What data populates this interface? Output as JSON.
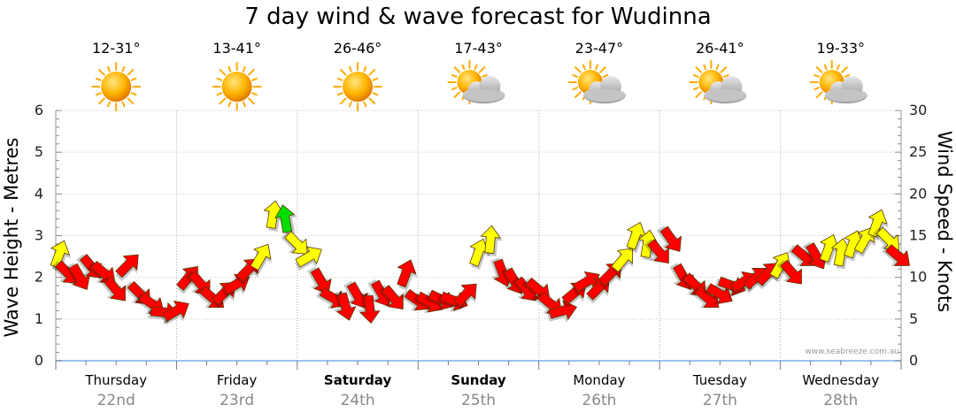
{
  "title": "7 day wind & wave forecast for Wudinna",
  "watermark": "www.seabreeze.com.au",
  "colors": {
    "calm": "#00dd00",
    "moderate": "#ffff00",
    "strong": "#ff0000",
    "sun": "#ffaa00",
    "cloud": "#b8b8b8",
    "wave_line": "#9cc3ef"
  },
  "days": [
    {
      "name": "Thursday",
      "date": "22nd",
      "bold": false,
      "temp": "12-31°",
      "weather_icon": "sun-icon"
    },
    {
      "name": "Friday",
      "date": "23rd",
      "bold": false,
      "temp": "13-41°",
      "weather_icon": "sun-icon"
    },
    {
      "name": "Saturday",
      "date": "24th",
      "bold": true,
      "temp": "26-46°",
      "weather_icon": "sun-icon"
    },
    {
      "name": "Sunday",
      "date": "25th",
      "bold": true,
      "temp": "17-43°",
      "weather_icon": "partly-cloudy-icon"
    },
    {
      "name": "Monday",
      "date": "26th",
      "bold": false,
      "temp": "23-47°",
      "weather_icon": "partly-cloudy-icon"
    },
    {
      "name": "Tuesday",
      "date": "27th",
      "bold": false,
      "temp": "26-41°",
      "weather_icon": "partly-cloudy-icon"
    },
    {
      "name": "Wednesday",
      "date": "28th",
      "bold": false,
      "temp": "19-33°",
      "weather_icon": "partly-cloudy-icon"
    }
  ],
  "chart_data": {
    "type": "line",
    "title": "7 day wind & wave forecast for Wudinna",
    "ylabel": "Wave Height - Metres",
    "y2label": "Wind Speed - Knots",
    "ylim": [
      0,
      6
    ],
    "y2lim": [
      0,
      30
    ],
    "yticks": [
      0,
      1,
      2,
      3,
      4,
      5,
      6
    ],
    "y2ticks": [
      0,
      5,
      10,
      15,
      20,
      25,
      30
    ],
    "grid": true,
    "x_unit": "day index (0 = start of Thursday 22nd)",
    "series": [
      {
        "x": [
          0.0,
          0.1,
          0.2,
          0.3,
          0.4,
          0.5,
          0.6,
          0.7,
          0.8,
          0.9,
          1.0,
          1.1,
          1.2,
          1.3,
          1.4,
          1.5,
          1.6,
          1.7,
          1.8,
          1.9,
          2.0,
          2.1,
          2.2,
          2.3,
          2.4,
          2.5,
          2.6,
          2.7,
          2.8,
          2.9,
          3.0,
          3.1,
          3.2,
          3.3,
          3.4,
          3.5,
          3.6,
          3.7,
          3.8,
          3.9,
          4.0,
          4.1,
          4.2,
          4.3,
          4.4,
          4.5,
          4.6,
          4.7,
          4.8,
          4.9,
          5.0,
          5.1,
          5.2,
          5.3,
          5.4,
          5.5,
          5.6,
          5.7,
          5.8,
          5.9,
          6.0,
          6.1,
          6.2,
          6.3,
          6.4,
          6.5,
          6.6,
          6.7,
          6.8,
          6.9,
          7.0
        ],
        "wind_knots": [
          12.8,
          10.5,
          10.0,
          11.2,
          10.5,
          8.5,
          11.5,
          8.0,
          6.8,
          5.8,
          6.0,
          10.0,
          9.2,
          7.5,
          8.2,
          9.2,
          11.0,
          12.5,
          17.5,
          17.0,
          14.0,
          12.5,
          9.5,
          7.5,
          6.5,
          7.8,
          6.2,
          8.0,
          7.5,
          10.5,
          7.2,
          7.0,
          7.3,
          7.2,
          8.0,
          13.0,
          14.5,
          10.5,
          9.5,
          8.5,
          8.5,
          6.8,
          6.0,
          8.2,
          9.5,
          8.8,
          10.5,
          12.2,
          15.0,
          14.0,
          13.0,
          14.5,
          10.0,
          9.0,
          7.5,
          8.0,
          9.0,
          9.5,
          10.0,
          10.5,
          11.5,
          10.5,
          12.5,
          12.5,
          13.5,
          13.0,
          14.0,
          14.5,
          16.5,
          14.5,
          12.5
        ]
      }
    ],
    "wind_arrows": [
      {
        "x": 0.03,
        "knots": 12.8,
        "dir": 20,
        "band": "moderate"
      },
      {
        "x": 0.1,
        "knots": 10.5,
        "dir": 135,
        "band": "strong"
      },
      {
        "x": 0.2,
        "knots": 10.0,
        "dir": 150,
        "band": "strong"
      },
      {
        "x": 0.3,
        "knots": 11.2,
        "dir": 140,
        "band": "strong"
      },
      {
        "x": 0.4,
        "knots": 10.5,
        "dir": 130,
        "band": "strong"
      },
      {
        "x": 0.5,
        "knots": 8.5,
        "dir": 140,
        "band": "strong"
      },
      {
        "x": 0.6,
        "knots": 11.5,
        "dir": 45,
        "band": "strong"
      },
      {
        "x": 0.7,
        "knots": 8.0,
        "dir": 135,
        "band": "strong"
      },
      {
        "x": 0.8,
        "knots": 6.8,
        "dir": 125,
        "band": "strong"
      },
      {
        "x": 0.9,
        "knots": 5.8,
        "dir": 95,
        "band": "strong"
      },
      {
        "x": 1.0,
        "knots": 6.0,
        "dir": 60,
        "band": "strong"
      },
      {
        "x": 1.1,
        "knots": 10.0,
        "dir": 40,
        "band": "strong"
      },
      {
        "x": 1.2,
        "knots": 9.2,
        "dir": 140,
        "band": "strong"
      },
      {
        "x": 1.3,
        "knots": 7.5,
        "dir": 130,
        "band": "strong"
      },
      {
        "x": 1.4,
        "knots": 8.2,
        "dir": 45,
        "band": "strong"
      },
      {
        "x": 1.5,
        "knots": 9.2,
        "dir": 60,
        "band": "strong"
      },
      {
        "x": 1.6,
        "knots": 11.0,
        "dir": 45,
        "band": "strong"
      },
      {
        "x": 1.7,
        "knots": 12.5,
        "dir": 30,
        "band": "moderate"
      },
      {
        "x": 1.8,
        "knots": 17.5,
        "dir": 10,
        "band": "moderate"
      },
      {
        "x": 1.9,
        "knots": 17.0,
        "dir": 350,
        "band": "calm"
      },
      {
        "x": 2.0,
        "knots": 14.0,
        "dir": 135,
        "band": "moderate"
      },
      {
        "x": 2.1,
        "knots": 12.5,
        "dir": 60,
        "band": "moderate"
      },
      {
        "x": 2.2,
        "knots": 9.5,
        "dir": 150,
        "band": "strong"
      },
      {
        "x": 2.3,
        "knots": 7.5,
        "dir": 120,
        "band": "strong"
      },
      {
        "x": 2.4,
        "knots": 6.5,
        "dir": 165,
        "band": "strong"
      },
      {
        "x": 2.5,
        "knots": 7.8,
        "dir": 150,
        "band": "strong"
      },
      {
        "x": 2.6,
        "knots": 6.2,
        "dir": 175,
        "band": "strong"
      },
      {
        "x": 2.7,
        "knots": 8.0,
        "dir": 150,
        "band": "strong"
      },
      {
        "x": 2.8,
        "knots": 7.5,
        "dir": 140,
        "band": "strong"
      },
      {
        "x": 2.9,
        "knots": 10.5,
        "dir": 20,
        "band": "strong"
      },
      {
        "x": 3.0,
        "knots": 7.2,
        "dir": 125,
        "band": "strong"
      },
      {
        "x": 3.1,
        "knots": 7.0,
        "dir": 120,
        "band": "strong"
      },
      {
        "x": 3.2,
        "knots": 7.3,
        "dir": 115,
        "band": "strong"
      },
      {
        "x": 3.3,
        "knots": 7.2,
        "dir": 110,
        "band": "strong"
      },
      {
        "x": 3.4,
        "knots": 8.0,
        "dir": 45,
        "band": "strong"
      },
      {
        "x": 3.5,
        "knots": 13.0,
        "dir": 20,
        "band": "moderate"
      },
      {
        "x": 3.6,
        "knots": 14.5,
        "dir": 5,
        "band": "moderate"
      },
      {
        "x": 3.7,
        "knots": 10.5,
        "dir": 160,
        "band": "strong"
      },
      {
        "x": 3.8,
        "knots": 9.5,
        "dir": 150,
        "band": "strong"
      },
      {
        "x": 3.9,
        "knots": 8.5,
        "dir": 140,
        "band": "strong"
      },
      {
        "x": 4.0,
        "knots": 8.5,
        "dir": 130,
        "band": "strong"
      },
      {
        "x": 4.1,
        "knots": 6.8,
        "dir": 130,
        "band": "strong"
      },
      {
        "x": 4.2,
        "knots": 6.0,
        "dir": 75,
        "band": "strong"
      },
      {
        "x": 4.3,
        "knots": 8.2,
        "dir": 50,
        "band": "strong"
      },
      {
        "x": 4.4,
        "knots": 9.5,
        "dir": 60,
        "band": "strong"
      },
      {
        "x": 4.5,
        "knots": 8.8,
        "dir": 45,
        "band": "strong"
      },
      {
        "x": 4.6,
        "knots": 10.5,
        "dir": 45,
        "band": "strong"
      },
      {
        "x": 4.7,
        "knots": 12.2,
        "dir": 40,
        "band": "moderate"
      },
      {
        "x": 4.8,
        "knots": 15.0,
        "dir": 20,
        "band": "moderate"
      },
      {
        "x": 4.9,
        "knots": 14.0,
        "dir": 10,
        "band": "moderate"
      },
      {
        "x": 5.0,
        "knots": 13.0,
        "dir": 140,
        "band": "strong"
      },
      {
        "x": 5.1,
        "knots": 14.5,
        "dir": 145,
        "band": "strong"
      },
      {
        "x": 5.2,
        "knots": 10.0,
        "dir": 150,
        "band": "strong"
      },
      {
        "x": 5.3,
        "knots": 9.0,
        "dir": 135,
        "band": "strong"
      },
      {
        "x": 5.4,
        "knots": 7.5,
        "dir": 130,
        "band": "strong"
      },
      {
        "x": 5.5,
        "knots": 8.0,
        "dir": 120,
        "band": "strong"
      },
      {
        "x": 5.6,
        "knots": 9.0,
        "dir": 110,
        "band": "strong"
      },
      {
        "x": 5.7,
        "knots": 9.5,
        "dir": 60,
        "band": "strong"
      },
      {
        "x": 5.8,
        "knots": 10.0,
        "dir": 50,
        "band": "strong"
      },
      {
        "x": 5.9,
        "knots": 10.5,
        "dir": 45,
        "band": "strong"
      },
      {
        "x": 6.0,
        "knots": 11.5,
        "dir": 30,
        "band": "moderate"
      },
      {
        "x": 6.1,
        "knots": 10.5,
        "dir": 140,
        "band": "strong"
      },
      {
        "x": 6.2,
        "knots": 12.5,
        "dir": 130,
        "band": "strong"
      },
      {
        "x": 6.3,
        "knots": 12.5,
        "dir": 150,
        "band": "strong"
      },
      {
        "x": 6.4,
        "knots": 13.5,
        "dir": 20,
        "band": "moderate"
      },
      {
        "x": 6.5,
        "knots": 13.0,
        "dir": 10,
        "band": "moderate"
      },
      {
        "x": 6.6,
        "knots": 14.0,
        "dir": 20,
        "band": "moderate"
      },
      {
        "x": 6.7,
        "knots": 14.5,
        "dir": 30,
        "band": "moderate"
      },
      {
        "x": 6.8,
        "knots": 16.5,
        "dir": 20,
        "band": "moderate"
      },
      {
        "x": 6.9,
        "knots": 14.5,
        "dir": 135,
        "band": "moderate"
      },
      {
        "x": 6.98,
        "knots": 12.5,
        "dir": 130,
        "band": "strong"
      }
    ]
  }
}
